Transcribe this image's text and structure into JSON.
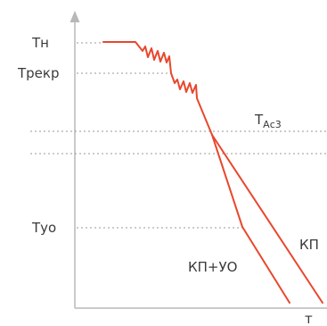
{
  "labels": {
    "y_tn": "Тн",
    "y_trekr": "Трекр",
    "y_tac3_main": "Т",
    "y_tac3_sub": "Ас3",
    "y_tuo": "Туо",
    "x_tau": "т",
    "curve_kp": "КП",
    "curve_kp_uo": "КП+УО"
  },
  "colors": {
    "curve": "#e8472d",
    "axis": "#b8b8b8",
    "grid": "#9a9a9a",
    "text": "#3a3a3a"
  }
}
